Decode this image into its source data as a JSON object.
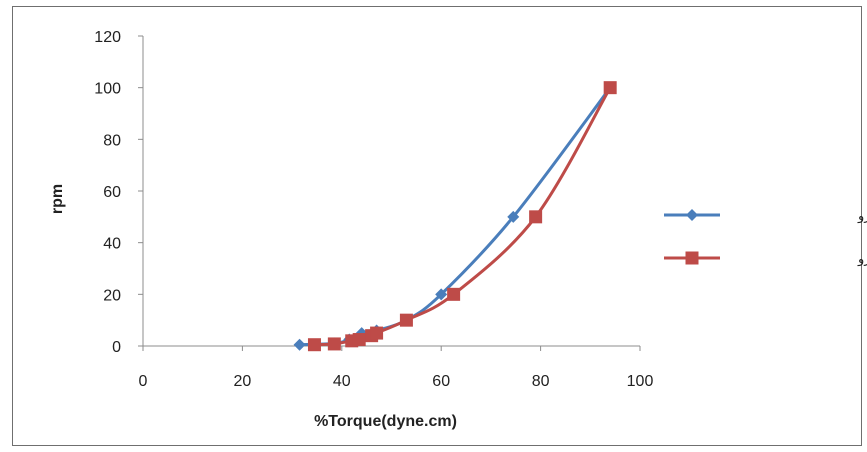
{
  "chart_data": {
    "type": "line",
    "xlabel": "%Torque(dyne.cm)",
    "ylabel": "rpm",
    "xlim": [
      0,
      100
    ],
    "ylim": [
      0,
      120
    ],
    "xticks": [
      0,
      20,
      40,
      60,
      80,
      100
    ],
    "yticks": [
      0,
      20,
      40,
      60,
      80,
      100,
      120
    ],
    "grid": false,
    "legend_position": "right",
    "series": [
      {
        "name": "نمودار بالارو",
        "color": "#4a7ebb",
        "marker": "diamond",
        "points": [
          {
            "x": 31.5,
            "y": 0.5
          },
          {
            "x": 38.5,
            "y": 1
          },
          {
            "x": 41.5,
            "y": 2.5
          },
          {
            "x": 44,
            "y": 5
          },
          {
            "x": 47,
            "y": 6
          },
          {
            "x": 53,
            "y": 10
          },
          {
            "x": 60,
            "y": 20
          },
          {
            "x": 74.5,
            "y": 50
          },
          {
            "x": 94,
            "y": 100
          }
        ]
      },
      {
        "name": "نمودار پایین رو",
        "color": "#be4b48",
        "marker": "square",
        "points": [
          {
            "x": 34.5,
            "y": 0.5
          },
          {
            "x": 38.5,
            "y": 0.8
          },
          {
            "x": 42,
            "y": 2
          },
          {
            "x": 43.5,
            "y": 2.5
          },
          {
            "x": 46,
            "y": 4
          },
          {
            "x": 47,
            "y": 5
          },
          {
            "x": 53,
            "y": 10
          },
          {
            "x": 62.5,
            "y": 20
          },
          {
            "x": 79,
            "y": 50
          },
          {
            "x": 94,
            "y": 100
          }
        ]
      }
    ]
  }
}
